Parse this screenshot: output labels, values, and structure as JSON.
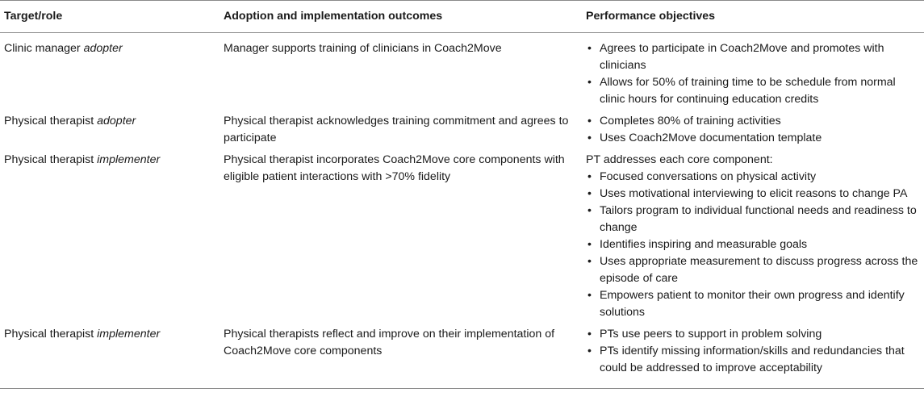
{
  "table": {
    "headers": [
      "Target/role",
      "Adoption and implementation outcomes",
      "Performance objectives"
    ],
    "rows": [
      {
        "role": "Clinic manager",
        "role_qualifier": "adopter",
        "outcome": "Manager supports training of clinicians in Coach2Move",
        "objectives_intro": "",
        "objectives": [
          "Agrees to participate in Coach2Move and promotes with clinicians",
          "Allows for 50% of training time to be schedule from normal clinic hours for continuing education credits"
        ]
      },
      {
        "role": "Physical therapist",
        "role_qualifier": "adopter",
        "outcome": "Physical therapist acknowledges training commitment and agrees to participate",
        "objectives_intro": "",
        "objectives": [
          "Completes 80% of training activities",
          "Uses Coach2Move documentation template"
        ]
      },
      {
        "role": "Physical therapist",
        "role_qualifier": "implementer",
        "outcome": "Physical therapist incorporates Coach2Move core components with eligible patient interactions with >70% fidelity",
        "objectives_intro": "PT addresses each core component:",
        "objectives": [
          "Focused conversations on physical activity",
          "Uses motivational interviewing to elicit reasons to change PA",
          "Tailors program to individual functional needs and readiness to change",
          "Identifies inspiring and measurable goals",
          "Uses appropriate measurement to discuss progress across the episode of care",
          "Empowers patient to monitor their own progress and identify solutions"
        ]
      },
      {
        "role": "Physical therapist",
        "role_qualifier": "implementer",
        "outcome": "Physical therapists reflect and improve on their implementation of Coach2Move core components",
        "objectives_intro": "",
        "objectives": [
          "PTs use peers to support in problem solving",
          "PTs identify missing information/skills and redundancies that could be addressed to improve acceptability"
        ]
      }
    ]
  }
}
